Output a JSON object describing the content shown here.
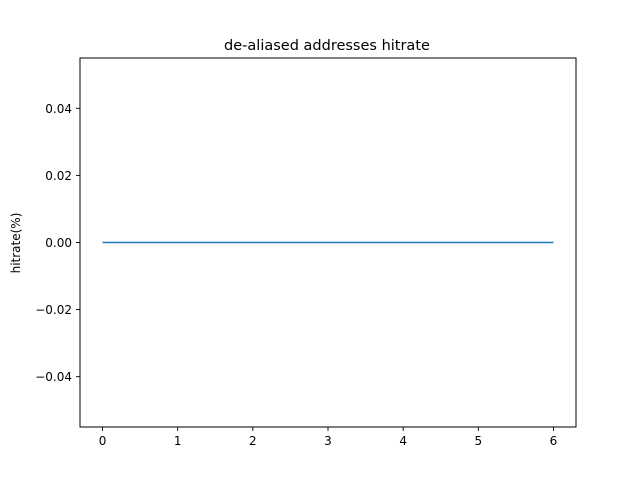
{
  "chart_data": {
    "type": "line",
    "title": "de-aliased addresses hitrate",
    "xlabel": "",
    "ylabel": "hitrate(%)",
    "xlim": [
      -0.3,
      6.3
    ],
    "ylim": [
      -0.055,
      0.055
    ],
    "xticks": [
      0,
      1,
      2,
      3,
      4,
      5,
      6
    ],
    "xtick_labels": [
      "0",
      "1",
      "2",
      "3",
      "4",
      "5",
      "6"
    ],
    "yticks": [
      -0.04,
      -0.02,
      0.0,
      0.02,
      0.04
    ],
    "ytick_labels": [
      "−0.04",
      "−0.02",
      "0.00",
      "0.02",
      "0.04"
    ],
    "grid": false,
    "series": [
      {
        "color": "#1f77b4",
        "x": [
          0,
          1,
          2,
          3,
          4,
          5,
          6
        ],
        "y": [
          0,
          0,
          0,
          0,
          0,
          0,
          0
        ]
      }
    ]
  }
}
